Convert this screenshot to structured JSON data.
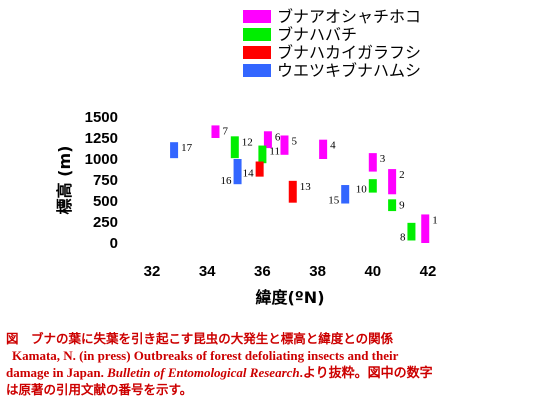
{
  "chart_data": {
    "type": "range-bar",
    "xlabel": "緯度(ºN)",
    "ylabel": "標高 (m)",
    "xlim": [
      31,
      42
    ],
    "ylim": [
      0,
      1500
    ],
    "x_ticks": [
      "32",
      "34",
      "36",
      "38",
      "40",
      "42"
    ],
    "y_ticks": [
      "0",
      "250",
      "500",
      "750",
      "1000",
      "1250",
      "1500"
    ],
    "series": [
      {
        "name": "ブナアオシャチホコ",
        "color": "#ff00ff"
      },
      {
        "name": "ブナハバチ",
        "color": "#00ee00"
      },
      {
        "name": "ブナハカイガラフシ",
        "color": "#ff0000"
      },
      {
        "name": "ウエツキブナハムシ",
        "color": "#3366ff"
      }
    ],
    "bars": [
      {
        "label": "1",
        "series": 0,
        "x": 41.9,
        "y_min": 0,
        "y_max": 340
      },
      {
        "label": "2",
        "series": 0,
        "x": 40.7,
        "y_min": 580,
        "y_max": 880
      },
      {
        "label": "3",
        "series": 0,
        "x": 40.0,
        "y_min": 850,
        "y_max": 1070
      },
      {
        "label": "4",
        "series": 0,
        "x": 38.2,
        "y_min": 1000,
        "y_max": 1230
      },
      {
        "label": "5",
        "series": 0,
        "x": 36.8,
        "y_min": 1050,
        "y_max": 1280
      },
      {
        "label": "6",
        "series": 0,
        "x": 36.2,
        "y_min": 1130,
        "y_max": 1330
      },
      {
        "label": "7",
        "series": 0,
        "x": 34.3,
        "y_min": 1250,
        "y_max": 1400
      },
      {
        "label": "8",
        "series": 1,
        "x": 41.4,
        "y_min": 30,
        "y_max": 240
      },
      {
        "label": "9",
        "series": 1,
        "x": 40.7,
        "y_min": 380,
        "y_max": 520
      },
      {
        "label": "10",
        "series": 1,
        "x": 40.0,
        "y_min": 600,
        "y_max": 760
      },
      {
        "label": "11",
        "series": 1,
        "x": 36.0,
        "y_min": 950,
        "y_max": 1160
      },
      {
        "label": "12",
        "series": 1,
        "x": 35.0,
        "y_min": 1010,
        "y_max": 1270
      },
      {
        "label": "13",
        "series": 2,
        "x": 37.1,
        "y_min": 480,
        "y_max": 740
      },
      {
        "label": "14",
        "series": 2,
        "x": 35.9,
        "y_min": 790,
        "y_max": 970
      },
      {
        "label": "15",
        "series": 3,
        "x": 39.0,
        "y_min": 470,
        "y_max": 690
      },
      {
        "label": "16",
        "series": 3,
        "x": 35.1,
        "y_min": 700,
        "y_max": 1000
      },
      {
        "label": "17",
        "series": 3,
        "x": 32.8,
        "y_min": 1010,
        "y_max": 1200
      }
    ]
  },
  "caption": {
    "line1": "図　ブナの葉に失葉を引き起こす昆虫の大発生と標高と緯度との関係",
    "line2_ref": "Kamata, N. (in press) Outbreaks of forest defoliating insects and their",
    "line3_ref_a": "damage in Japan. ",
    "line3_journal": "Bulletin of Entomological Research",
    "line3_tail": ".より抜粋。図中の数字",
    "line4": "は原著の引用文献の番号を示す。"
  }
}
